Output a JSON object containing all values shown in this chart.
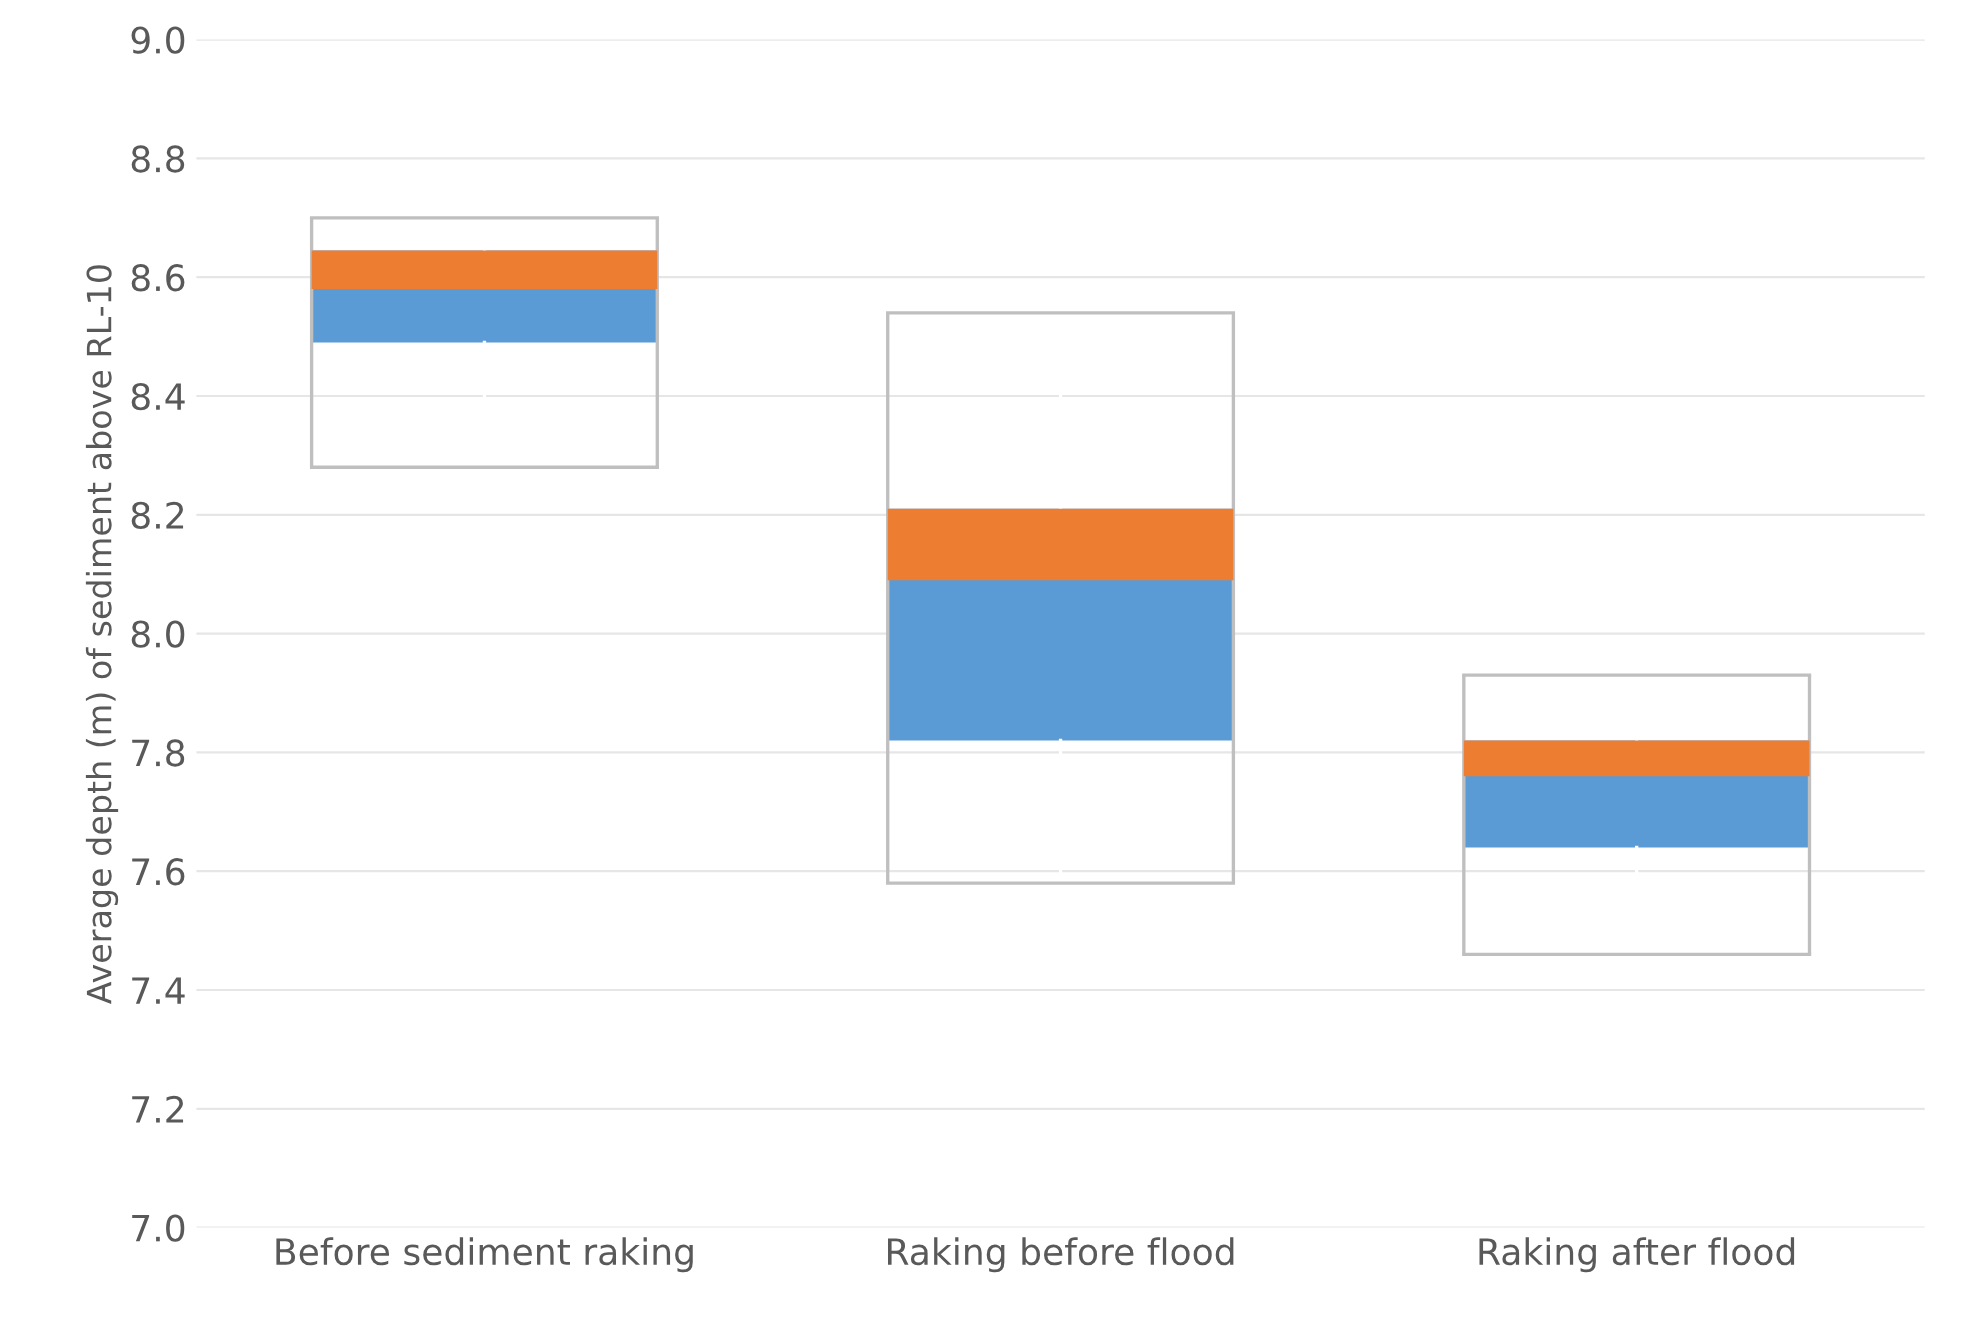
{
  "chart_data": {
    "type": "box",
    "ylabel": "Average depth (m) of sediment above RL-10",
    "categories": [
      "Before sediment raking",
      "Raking before flood",
      "Raking after flood"
    ],
    "boxes": [
      {
        "low": 8.28,
        "q1": 8.49,
        "median": 8.58,
        "q3": 8.645,
        "high": 8.7
      },
      {
        "low": 7.58,
        "q1": 7.82,
        "median": 8.09,
        "q3": 8.21,
        "high": 8.54
      },
      {
        "low": 7.46,
        "q1": 7.64,
        "median": 7.76,
        "q3": 7.82,
        "high": 7.93
      }
    ],
    "colors": [
      [
        "#5b9bd5",
        "#ed7d31"
      ],
      [
        "#5b9bd5",
        "#ed7d31"
      ],
      [
        "#5b9bd5",
        "#ed7d31"
      ]
    ],
    "ylim": [
      7.0,
      9.0
    ],
    "yticks": [
      {
        "value": 7.0,
        "label": "7.0"
      },
      {
        "value": 7.2,
        "label": "7.2"
      },
      {
        "value": 7.4,
        "label": "7.4"
      },
      {
        "value": 7.6,
        "label": "7.6"
      },
      {
        "value": 7.8,
        "label": "7.8"
      },
      {
        "value": 8.0,
        "label": "8.0"
      },
      {
        "value": 8.2,
        "label": "8.2"
      },
      {
        "value": 8.4,
        "label": "8.4"
      },
      {
        "value": 8.6,
        "label": "8.6"
      },
      {
        "value": 8.8,
        "label": "8.8"
      },
      {
        "value": 9.0,
        "label": "9.0"
      }
    ],
    "grid": "y"
  }
}
